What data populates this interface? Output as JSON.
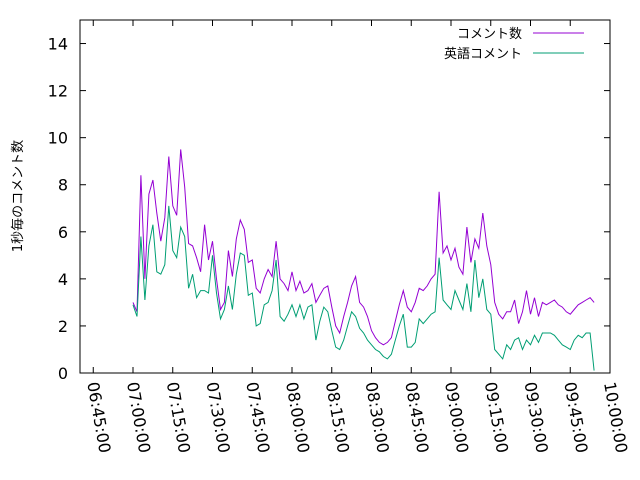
{
  "chart_data": {
    "type": "line",
    "ylabel": "1秒毎のコメント数",
    "xlabel": "",
    "title": "",
    "ylim": [
      0,
      15
    ],
    "xlim": [
      "06:40:00",
      "10:00:00"
    ],
    "yticks": [
      0,
      2,
      4,
      6,
      8,
      10,
      12,
      14
    ],
    "yticklabels": [
      "0",
      "2",
      "4",
      "6",
      "8",
      "10",
      "12",
      "14"
    ],
    "xticks": [
      "06:45:00",
      "07:00:00",
      "07:15:00",
      "07:30:00",
      "07:45:00",
      "08:00:00",
      "08:15:00",
      "08:30:00",
      "08:45:00",
      "09:00:00",
      "09:15:00",
      "09:30:00",
      "09:45:00",
      "10:00:00"
    ],
    "grid": false,
    "legend_position": "top-right",
    "series": [
      {
        "name": "コメント数",
        "color": "#9400d3",
        "x": [
          "07:00:00",
          "07:01:30",
          "07:03:00",
          "07:04:30",
          "07:06:00",
          "07:07:30",
          "07:09:00",
          "07:10:30",
          "07:12:00",
          "07:13:30",
          "07:15:00",
          "07:16:30",
          "07:18:00",
          "07:19:30",
          "07:21:00",
          "07:22:30",
          "07:24:00",
          "07:25:30",
          "07:27:00",
          "07:28:30",
          "07:30:00",
          "07:31:30",
          "07:33:00",
          "07:34:30",
          "07:36:00",
          "07:37:30",
          "07:39:00",
          "07:40:30",
          "07:42:00",
          "07:43:30",
          "07:45:00",
          "07:46:30",
          "07:48:00",
          "07:49:30",
          "07:51:00",
          "07:52:30",
          "07:54:00",
          "07:55:30",
          "07:57:00",
          "07:58:30",
          "08:00:00",
          "08:01:30",
          "08:03:00",
          "08:04:30",
          "08:06:00",
          "08:07:30",
          "08:09:00",
          "08:10:30",
          "08:12:00",
          "08:13:30",
          "08:15:00",
          "08:16:30",
          "08:18:00",
          "08:19:30",
          "08:21:00",
          "08:22:30",
          "08:24:00",
          "08:25:30",
          "08:27:00",
          "08:28:30",
          "08:30:00",
          "08:31:30",
          "08:33:00",
          "08:34:30",
          "08:36:00",
          "08:37:30",
          "08:39:00",
          "08:40:30",
          "08:42:00",
          "08:43:30",
          "08:45:00",
          "08:46:30",
          "08:48:00",
          "08:49:30",
          "08:51:00",
          "08:52:30",
          "08:54:00",
          "08:55:30",
          "08:57:00",
          "08:58:30",
          "09:00:00",
          "09:01:30",
          "09:03:00",
          "09:04:30",
          "09:06:00",
          "09:07:30",
          "09:09:00",
          "09:10:30",
          "09:12:00",
          "09:13:30",
          "09:15:00",
          "09:16:30",
          "09:18:00",
          "09:19:30",
          "09:21:00",
          "09:22:30",
          "09:24:00",
          "09:25:30",
          "09:27:00",
          "09:28:30",
          "09:30:00",
          "09:31:30",
          "09:33:00",
          "09:34:30",
          "09:36:00",
          "09:37:30",
          "09:39:00",
          "09:40:30",
          "09:42:00",
          "09:43:30",
          "09:45:00",
          "09:46:30",
          "09:48:00",
          "09:49:30",
          "09:51:00",
          "09:52:30",
          "09:54:00"
        ],
        "values": [
          3.0,
          2.6,
          8.4,
          4.0,
          7.6,
          8.2,
          6.8,
          5.6,
          6.6,
          9.2,
          7.1,
          6.7,
          9.5,
          7.9,
          5.5,
          5.4,
          4.9,
          4.3,
          6.3,
          4.8,
          5.6,
          4.0,
          2.7,
          3.0,
          5.2,
          4.1,
          5.7,
          6.5,
          6.1,
          4.7,
          4.8,
          3.6,
          3.4,
          4.0,
          4.4,
          4.1,
          5.6,
          4.0,
          3.8,
          3.5,
          4.3,
          3.5,
          3.9,
          3.4,
          3.5,
          3.8,
          3.0,
          3.3,
          3.6,
          3.7,
          2.8,
          2.0,
          1.7,
          2.4,
          3.0,
          3.7,
          4.1,
          3.0,
          2.8,
          2.4,
          1.8,
          1.5,
          1.3,
          1.2,
          1.3,
          1.5,
          2.2,
          2.9,
          3.5,
          2.8,
          2.6,
          3.0,
          3.6,
          3.5,
          3.7,
          4.0,
          4.2,
          7.7,
          5.1,
          5.4,
          4.8,
          5.3,
          4.5,
          4.2,
          6.2,
          4.7,
          5.7,
          5.3,
          6.8,
          5.4,
          4.6,
          3.0,
          2.5,
          2.3,
          2.6,
          2.6,
          3.1,
          2.1,
          2.6,
          3.5,
          2.5,
          3.2,
          2.4,
          3.0,
          2.9,
          3.0,
          3.1,
          2.9,
          2.8,
          2.6,
          2.5,
          2.7,
          2.9,
          3.0,
          3.1,
          3.2,
          3.0
        ]
      },
      {
        "name": "英語コメント",
        "color": "#009e73",
        "x": [
          "07:00:00",
          "07:01:30",
          "07:03:00",
          "07:04:30",
          "07:06:00",
          "07:07:30",
          "07:09:00",
          "07:10:30",
          "07:12:00",
          "07:13:30",
          "07:15:00",
          "07:16:30",
          "07:18:00",
          "07:19:30",
          "07:21:00",
          "07:22:30",
          "07:24:00",
          "07:25:30",
          "07:27:00",
          "07:28:30",
          "07:30:00",
          "07:31:30",
          "07:33:00",
          "07:34:30",
          "07:36:00",
          "07:37:30",
          "07:39:00",
          "07:40:30",
          "07:42:00",
          "07:43:30",
          "07:45:00",
          "07:46:30",
          "07:48:00",
          "07:49:30",
          "07:51:00",
          "07:52:30",
          "07:54:00",
          "07:55:30",
          "07:57:00",
          "07:58:30",
          "08:00:00",
          "08:01:30",
          "08:03:00",
          "08:04:30",
          "08:06:00",
          "08:07:30",
          "08:09:00",
          "08:10:30",
          "08:12:00",
          "08:13:30",
          "08:15:00",
          "08:16:30",
          "08:18:00",
          "08:19:30",
          "08:21:00",
          "08:22:30",
          "08:24:00",
          "08:25:30",
          "08:27:00",
          "08:28:30",
          "08:30:00",
          "08:31:30",
          "08:33:00",
          "08:34:30",
          "08:36:00",
          "08:37:30",
          "08:39:00",
          "08:40:30",
          "08:42:00",
          "08:43:30",
          "08:45:00",
          "08:46:30",
          "08:48:00",
          "08:49:30",
          "08:51:00",
          "08:52:30",
          "08:54:00",
          "08:55:30",
          "08:57:00",
          "08:58:30",
          "09:00:00",
          "09:01:30",
          "09:03:00",
          "09:04:30",
          "09:06:00",
          "09:07:30",
          "09:09:00",
          "09:10:30",
          "09:12:00",
          "09:13:30",
          "09:15:00",
          "09:16:30",
          "09:18:00",
          "09:19:30",
          "09:21:00",
          "09:22:30",
          "09:24:00",
          "09:25:30",
          "09:27:00",
          "09:28:30",
          "09:30:00",
          "09:31:30",
          "09:33:00",
          "09:34:30",
          "09:36:00",
          "09:37:30",
          "09:39:00",
          "09:40:30",
          "09:42:00",
          "09:43:30",
          "09:45:00",
          "09:46:30",
          "09:48:00",
          "09:49:30",
          "09:51:00",
          "09:52:30",
          "09:54:00"
        ],
        "values": [
          2.9,
          2.4,
          5.8,
          3.1,
          5.4,
          6.3,
          4.3,
          4.2,
          4.6,
          7.1,
          5.2,
          4.9,
          6.2,
          5.8,
          3.6,
          4.2,
          3.2,
          3.5,
          3.5,
          3.4,
          5.0,
          3.4,
          2.3,
          2.7,
          3.7,
          2.7,
          4.2,
          5.1,
          5.0,
          3.3,
          3.4,
          2.0,
          2.1,
          2.9,
          3.0,
          3.5,
          4.8,
          2.4,
          2.2,
          2.5,
          2.9,
          2.4,
          2.9,
          2.3,
          2.8,
          2.9,
          1.4,
          2.2,
          2.8,
          2.6,
          1.8,
          1.1,
          1.0,
          1.4,
          2.0,
          2.6,
          2.4,
          1.9,
          1.7,
          1.4,
          1.2,
          1.0,
          0.9,
          0.7,
          0.6,
          0.8,
          1.4,
          2.0,
          2.5,
          1.1,
          1.1,
          1.3,
          2.3,
          2.1,
          2.3,
          2.5,
          2.6,
          4.9,
          3.1,
          2.9,
          2.7,
          3.5,
          3.1,
          2.7,
          3.8,
          2.6,
          4.8,
          3.2,
          4.0,
          2.7,
          2.5,
          1.0,
          0.8,
          0.6,
          1.2,
          1.0,
          1.4,
          1.5,
          1.0,
          1.4,
          1.2,
          1.6,
          1.3,
          1.7,
          1.7,
          1.7,
          1.6,
          1.4,
          1.2,
          1.1,
          1.0,
          1.4,
          1.6,
          1.5,
          1.7,
          1.7,
          0.1
        ]
      }
    ]
  }
}
